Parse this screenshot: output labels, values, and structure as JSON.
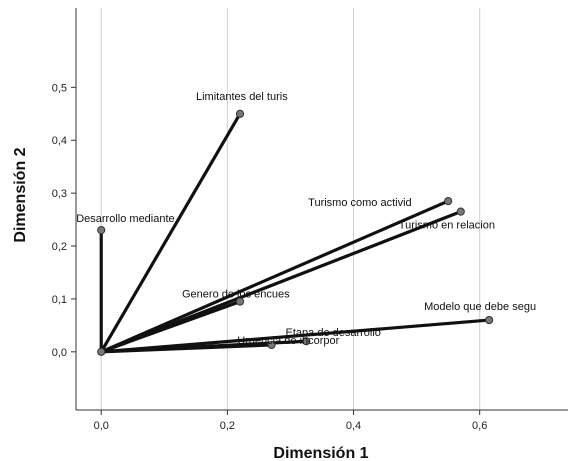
{
  "chart_data": {
    "type": "scatter",
    "title": "",
    "xlabel": "Dimensión 1",
    "ylabel": "Dimensión 2",
    "xlim": [
      -0.04,
      0.74
    ],
    "ylim": [
      -0.11,
      0.65
    ],
    "xticks": [
      "0,0",
      "0,2",
      "0,4",
      "0,6"
    ],
    "yticks": [
      "0,0",
      "0,1",
      "0,2",
      "0,3",
      "0,4",
      "0,5"
    ],
    "grid_x": true,
    "grid_y": false,
    "origin": {
      "x": 0,
      "y": 0
    },
    "points": [
      {
        "label": "Limitantes del turis",
        "x": 0.22,
        "y": 0.45
      },
      {
        "label": "Desarrollo mediante",
        "x": 0.0,
        "y": 0.23
      },
      {
        "label": "Turismo como activid",
        "x": 0.55,
        "y": 0.285
      },
      {
        "label": "Turismo en relacion",
        "x": 0.57,
        "y": 0.265
      },
      {
        "label": "Genero de los encues",
        "x": 0.22,
        "y": 0.095
      },
      {
        "label": "Modelo que debe segu",
        "x": 0.615,
        "y": 0.06
      },
      {
        "label": "Etapa de desarrollo",
        "x": 0.27,
        "y": 0.013
      },
      {
        "label": "Urgencia de incorpor",
        "x": 0.325,
        "y": 0.02
      }
    ]
  }
}
